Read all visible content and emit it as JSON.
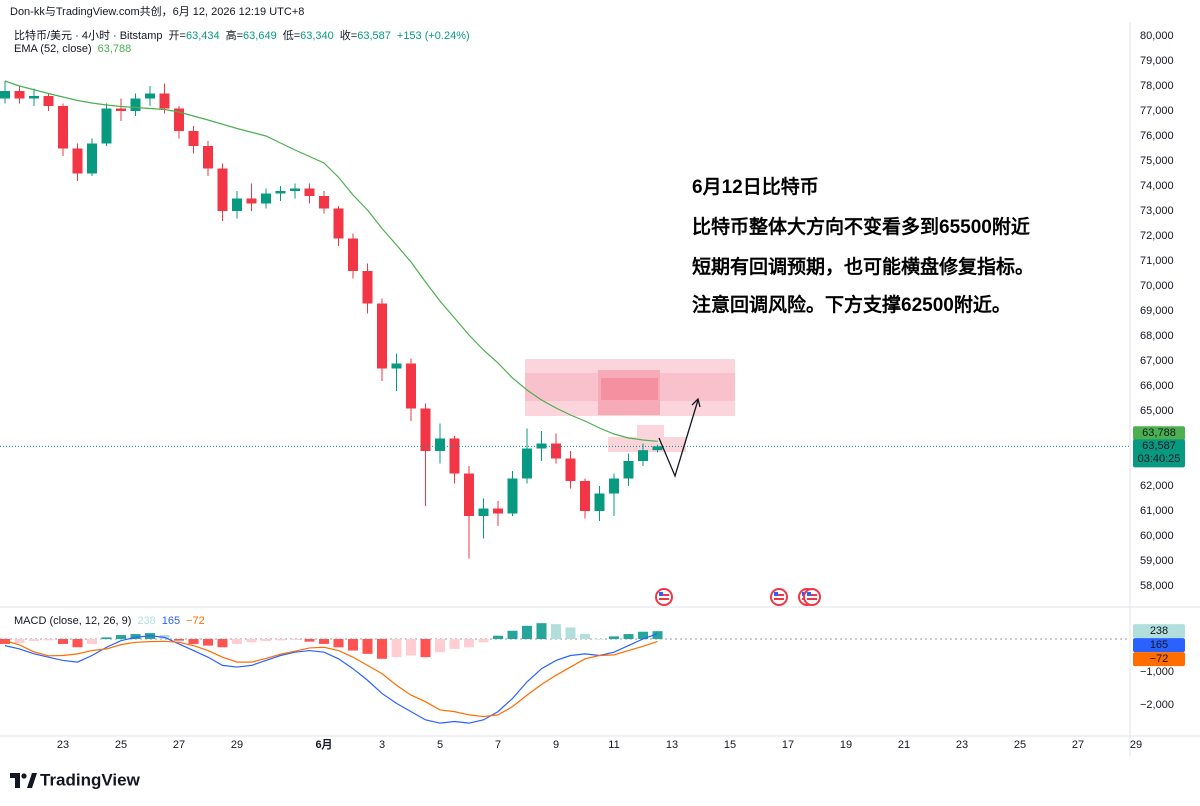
{
  "header": {
    "author_line": "Don-kk与TradingView.com共创，6月 12, 2026 12:19 UTC+8"
  },
  "annotation": {
    "lines": [
      "6月12日比特币",
      "比特币整体大方向不变看多到65500附近",
      "短期有回调预期，也可能横盘修复指标。",
      "注意回调风险。下方支撑62500附近。"
    ]
  },
  "footer": {
    "brand": "TradingView"
  },
  "chart_data": [
    {
      "type": "candlestick",
      "categories": [
        null,
        null,
        null,
        null,
        "23",
        null,
        null,
        null,
        "25",
        null,
        null,
        null,
        "27",
        null,
        null,
        null,
        "29",
        null,
        null,
        null,
        null,
        null,
        "6月",
        null,
        null,
        null,
        "3",
        null,
        null,
        null,
        "5",
        null,
        null,
        null,
        "7",
        null,
        null,
        null,
        "9",
        null,
        null,
        null,
        "11",
        null,
        null,
        null,
        "13",
        null,
        null,
        null,
        "15",
        null,
        null,
        null,
        "17",
        null,
        null,
        null,
        "19",
        null,
        null,
        null,
        "21",
        null,
        null,
        null,
        "23",
        null,
        null,
        null,
        "25",
        null,
        null,
        null,
        "27",
        null,
        null,
        null,
        "29"
      ],
      "legend_values": [
        {
          "key": "开=",
          "value": "63,434"
        },
        {
          "key": "高=",
          "value": "63,649"
        },
        {
          "key": "低=",
          "value": "63,340"
        },
        {
          "key": "收=",
          "value": "63,587"
        }
      ],
      "change": "+153 (+0.24%)",
      "last_label": "63,587",
      "countdown": "03:40:25",
      "up_color": "#089981",
      "down_color": "#f23645",
      "series": [
        {
          "name": "比特币/美元 · 4小时 · Bitstamp",
          "open": [
            77500,
            77800,
            77500,
            77600,
            77200,
            75500,
            74500,
            75700,
            77100,
            77000,
            77500,
            77700,
            77100,
            76200,
            75600,
            74700,
            73000,
            73500,
            73300,
            73700,
            73800,
            73900,
            73600,
            73100,
            71900,
            70600,
            69300,
            66700,
            66900,
            65100,
            63400,
            63900,
            62500,
            60800,
            61100,
            60900,
            62300,
            63500,
            63700,
            63100,
            62200,
            61000,
            61700,
            62300,
            63000,
            63434,
            null,
            null,
            null,
            null,
            null,
            null,
            null,
            null,
            null,
            null,
            null,
            null,
            null,
            null,
            null,
            null,
            null,
            null,
            null,
            null,
            null,
            null,
            null,
            null,
            null,
            null,
            null,
            null,
            null,
            null,
            null,
            null,
            null
          ],
          "high": [
            78200,
            78000,
            77900,
            77700,
            77300,
            75700,
            75900,
            77300,
            77500,
            77700,
            78000,
            78100,
            77200,
            76400,
            75800,
            74900,
            73800,
            74100,
            73900,
            74000,
            74100,
            74100,
            73800,
            73200,
            72100,
            70900,
            69500,
            67300,
            67100,
            65300,
            64500,
            64000,
            62800,
            61500,
            61400,
            62600,
            64300,
            64200,
            64100,
            63400,
            62300,
            62000,
            62500,
            63300,
            63700,
            63649,
            null,
            null,
            null,
            null,
            null,
            null,
            null,
            null,
            null,
            null,
            null,
            null,
            null,
            null,
            null,
            null,
            null,
            null,
            null,
            null,
            null,
            null,
            null,
            null,
            null,
            null,
            null,
            null,
            null,
            null,
            null,
            null,
            null
          ],
          "low": [
            77300,
            77300,
            77200,
            77000,
            75200,
            74200,
            74400,
            75600,
            76600,
            76800,
            77200,
            76900,
            75900,
            75300,
            74400,
            72600,
            72700,
            73000,
            73100,
            73400,
            73500,
            73300,
            72900,
            71600,
            70300,
            68900,
            66200,
            65800,
            64600,
            61200,
            62900,
            62100,
            59100,
            59900,
            60400,
            60800,
            62100,
            63000,
            62900,
            61900,
            60700,
            60600,
            60800,
            62000,
            62800,
            63340,
            null,
            null,
            null,
            null,
            null,
            null,
            null,
            null,
            null,
            null,
            null,
            null,
            null,
            null,
            null,
            null,
            null,
            null,
            null,
            null,
            null,
            null,
            null,
            null,
            null,
            null,
            null,
            null,
            null,
            null,
            null,
            null,
            null
          ],
          "close": [
            77800,
            77500,
            77600,
            77200,
            75500,
            74500,
            75700,
            77100,
            77000,
            77500,
            77700,
            77100,
            76200,
            75600,
            74700,
            73000,
            73500,
            73300,
            73700,
            73800,
            73900,
            73600,
            73100,
            71900,
            70600,
            69300,
            66700,
            66900,
            65100,
            63400,
            63900,
            62500,
            60800,
            61100,
            60900,
            62300,
            63500,
            63700,
            63100,
            62200,
            61000,
            61700,
            62300,
            63000,
            63434,
            63587,
            null,
            null,
            null,
            null,
            null,
            null,
            null,
            null,
            null,
            null,
            null,
            null,
            null,
            null,
            null,
            null,
            null,
            null,
            null,
            null,
            null,
            null,
            null,
            null,
            null,
            null,
            null,
            null,
            null,
            null,
            null,
            null,
            null
          ]
        },
        {
          "name": "EMA (52, close)",
          "type": "line",
          "color": "#4caf50",
          "label": "63,788",
          "values": [
            78200,
            78000,
            77850,
            77700,
            77560,
            77420,
            77320,
            77240,
            77180,
            77140,
            77100,
            77060,
            76960,
            76800,
            76640,
            76470,
            76300,
            76150,
            76000,
            75720,
            75440,
            75180,
            74920,
            74350,
            73640,
            73040,
            72300,
            71640,
            70960,
            70160,
            69400,
            68720,
            68040,
            67440,
            66920,
            66320,
            65840,
            65440,
            65120,
            64840,
            64600,
            64320,
            64080,
            63920,
            63840,
            63788,
            null,
            null,
            null,
            null,
            null,
            null,
            null,
            null,
            null,
            null,
            null,
            null,
            null,
            null,
            null,
            null,
            null,
            null,
            null,
            null,
            null,
            null,
            null,
            null,
            null,
            null,
            null,
            null,
            null,
            null,
            null,
            null,
            null
          ]
        }
      ],
      "ylim": [
        57160,
        80560
      ],
      "yticks": [
        {
          "value": 58000,
          "label": "58,000"
        },
        {
          "value": 59000,
          "label": "59,000"
        },
        {
          "value": 60000,
          "label": "60,000"
        },
        {
          "value": 61000,
          "label": "61,000"
        },
        {
          "value": 62000,
          "label": "62,000"
        },
        {
          "value": 63000,
          "label": "63,000"
        },
        {
          "value": 64000,
          "label": "64,000"
        },
        {
          "value": 65000,
          "label": "65,000"
        },
        {
          "value": 66000,
          "label": "66,000"
        },
        {
          "value": 67000,
          "label": "67,000"
        },
        {
          "value": 68000,
          "label": "68,000"
        },
        {
          "value": 69000,
          "label": "69,000"
        },
        {
          "value": 70000,
          "label": "70,000"
        },
        {
          "value": 71000,
          "label": "71,000"
        },
        {
          "value": 72000,
          "label": "72,000"
        },
        {
          "value": 73000,
          "label": "73,000"
        },
        {
          "value": 74000,
          "label": "74,000"
        },
        {
          "value": 75000,
          "label": "75,000"
        },
        {
          "value": 76000,
          "label": "76,000"
        },
        {
          "value": 77000,
          "label": "77,000"
        },
        {
          "value": 78000,
          "label": "78,000"
        },
        {
          "value": 79000,
          "label": "79,000"
        },
        {
          "value": 80000,
          "label": "80,000"
        }
      ],
      "grid": false
    },
    {
      "type": "macd",
      "title": "MACD (close, 12, 26, 9)",
      "hist_colors": {
        "up_rising": "#26a69a",
        "up_falling": "#b2dfdb",
        "down_falling": "#ff5252",
        "down_rising": "#ffcdd2"
      },
      "series": [
        {
          "type": "histogram",
          "color": "#b2dfdb",
          "text_color": "#131722",
          "label": "238",
          "values": [
            -150,
            -120,
            -60,
            -40,
            -150,
            -250,
            -150,
            50,
            120,
            150,
            180,
            120,
            -50,
            -150,
            -200,
            -250,
            -150,
            -100,
            -60,
            -40,
            -30,
            -80,
            -150,
            -250,
            -350,
            -450,
            -600,
            -550,
            -500,
            -550,
            -400,
            -300,
            -250,
            -100,
            100,
            250,
            400,
            480,
            450,
            350,
            150,
            0,
            80,
            150,
            220,
            238
          ]
        },
        {
          "type": "line",
          "color": "#2962ff",
          "text_color": "#ffffff",
          "label": "165",
          "values": [
            -200,
            -300,
            -450,
            -550,
            -650,
            -700,
            -500,
            -250,
            -50,
            50,
            100,
            50,
            -150,
            -350,
            -550,
            -800,
            -850,
            -800,
            -650,
            -500,
            -400,
            -350,
            -400,
            -600,
            -900,
            -1250,
            -1650,
            -1950,
            -2200,
            -2450,
            -2550,
            -2500,
            -2550,
            -2450,
            -2200,
            -1800,
            -1300,
            -900,
            -650,
            -500,
            -450,
            -500,
            -400,
            -200,
            0,
            165
          ]
        },
        {
          "type": "line",
          "color": "#ff6d00",
          "text_color": "#ffffff",
          "label": "−72",
          "values": [
            -50,
            -180,
            -390,
            -510,
            -500,
            -450,
            -350,
            -300,
            -170,
            -100,
            -80,
            -70,
            -100,
            -200,
            -350,
            -550,
            -700,
            -700,
            -590,
            -460,
            -370,
            -270,
            -250,
            -350,
            -550,
            -800,
            -1050,
            -1400,
            -1700,
            -1900,
            -2150,
            -2200,
            -2300,
            -2350,
            -2300,
            -2050,
            -1700,
            -1380,
            -1100,
            -850,
            -600,
            -500,
            -480,
            -350,
            -220,
            -72
          ]
        }
      ],
      "ylim": [
        -2909,
        879
      ],
      "yticks": [
        {
          "value": -1000,
          "label": "−1,000"
        },
        {
          "value": -2000,
          "label": "−2,000"
        }
      ]
    }
  ]
}
